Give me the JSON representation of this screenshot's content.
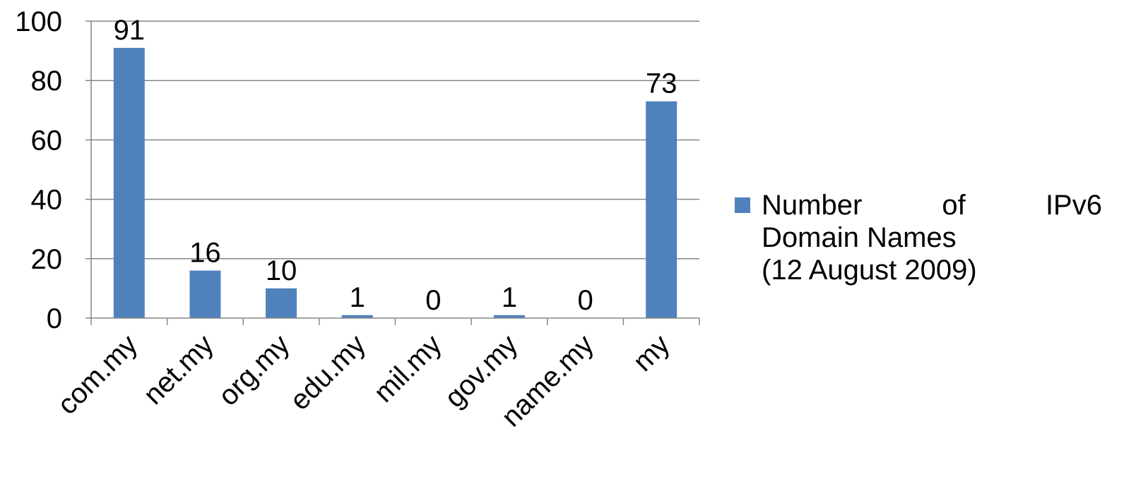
{
  "chart_data": {
    "type": "bar",
    "categories": [
      "com.my",
      "net.my",
      "org.my",
      "edu.my",
      "mil.my",
      "gov.my",
      "name.my",
      "my"
    ],
    "series": [
      {
        "name": "Number of IPv6 Domain Names (12 August 2009)",
        "values": [
          91,
          16,
          10,
          1,
          0,
          1,
          0,
          73
        ]
      }
    ],
    "data_labels": [
      "91",
      "16",
      "10",
      "1",
      "0",
      "1",
      "0",
      "73"
    ],
    "y_ticks": [
      "0",
      "20",
      "40",
      "60",
      "80",
      "100"
    ],
    "ylim": [
      0,
      100
    ],
    "grid": true,
    "legend_position": "right",
    "title": "",
    "xlabel": "",
    "ylabel": "",
    "colors": {
      "bar": "#4F81BD",
      "grid": "#868686",
      "axis": "#868686"
    }
  },
  "legend": {
    "words": [
      "Number",
      "of",
      "IPv6"
    ],
    "line2": "Domain Names",
    "line3": "(12 August 2009)"
  }
}
